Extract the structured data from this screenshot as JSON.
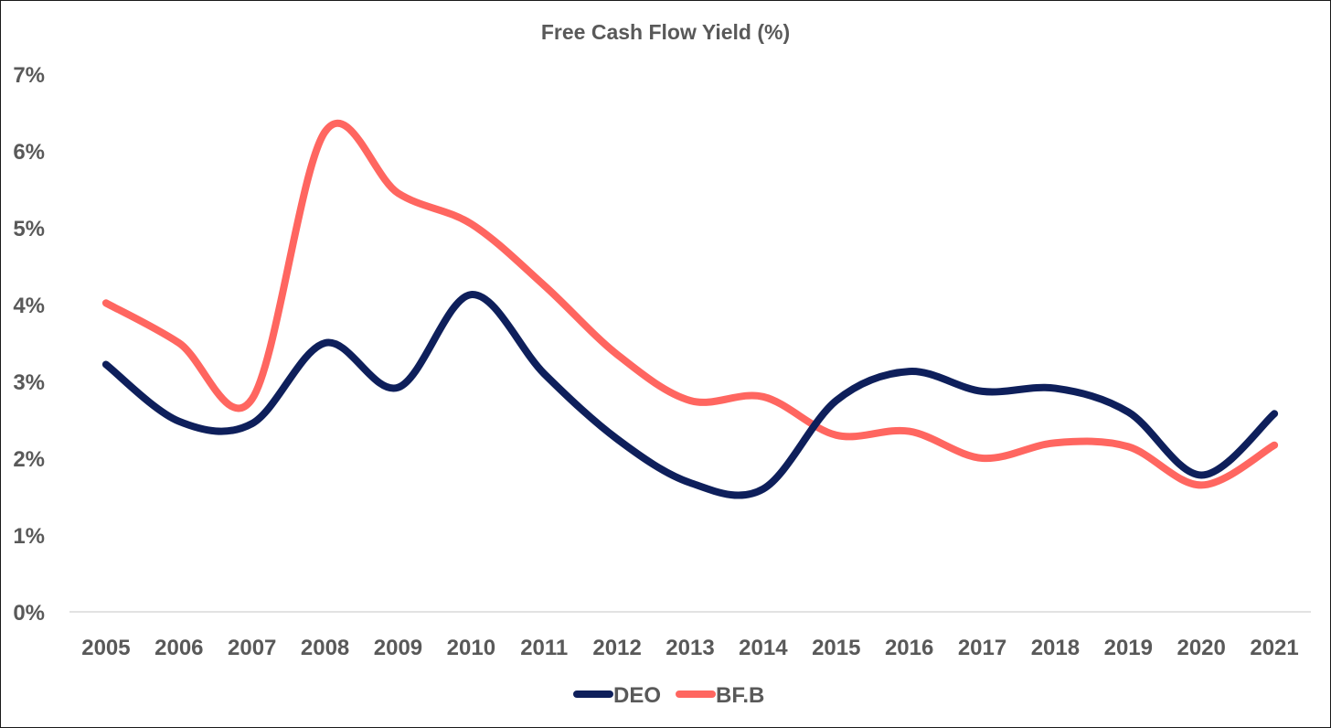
{
  "chart_data": {
    "type": "line",
    "title": "Free Cash Flow Yield (%)",
    "xlabel": "",
    "ylabel": "",
    "categories": [
      "2005",
      "2006",
      "2007",
      "2008",
      "2009",
      "2010",
      "2011",
      "2012",
      "2013",
      "2014",
      "2015",
      "2016",
      "2017",
      "2018",
      "2019",
      "2020",
      "2021"
    ],
    "y_ticks": [
      0,
      1,
      2,
      3,
      4,
      5,
      6,
      7
    ],
    "y_tick_labels": [
      "0%",
      "1%",
      "2%",
      "3%",
      "4%",
      "5%",
      "6%",
      "7%"
    ],
    "ylim": [
      0,
      7
    ],
    "grid": false,
    "smooth": true,
    "legend_position": "bottom",
    "series": [
      {
        "name": "DEO",
        "color": "#0e1f5b",
        "values": [
          3.22,
          2.48,
          2.45,
          3.5,
          2.92,
          4.13,
          3.1,
          2.25,
          1.68,
          1.6,
          2.75,
          3.13,
          2.87,
          2.91,
          2.6,
          1.78,
          2.58
        ]
      },
      {
        "name": "BF.B",
        "color": "#ff6660",
        "values": [
          4.02,
          3.5,
          2.77,
          6.25,
          5.45,
          5.05,
          4.25,
          3.35,
          2.75,
          2.8,
          2.3,
          2.35,
          2.0,
          2.2,
          2.15,
          1.65,
          2.17
        ]
      }
    ]
  }
}
